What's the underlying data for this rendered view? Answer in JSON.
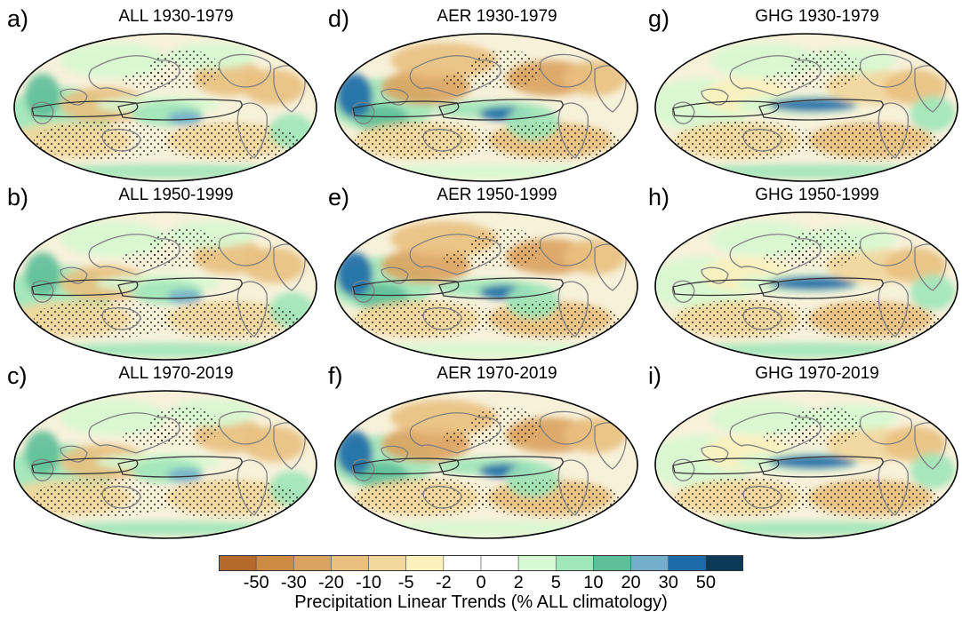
{
  "panels": [
    {
      "letter": "a)",
      "title": "ALL 1930-1979",
      "forcing": "ALL",
      "period": "1930-1979"
    },
    {
      "letter": "b)",
      "title": "ALL 1950-1999",
      "forcing": "ALL",
      "period": "1950-1999"
    },
    {
      "letter": "c)",
      "title": "ALL 1970-2019",
      "forcing": "ALL",
      "period": "1970-2019"
    },
    {
      "letter": "d)",
      "title": "AER 1930-1979",
      "forcing": "AER",
      "period": "1930-1979"
    },
    {
      "letter": "e)",
      "title": "AER 1950-1999",
      "forcing": "AER",
      "period": "1950-1999"
    },
    {
      "letter": "f)",
      "title": "AER 1970-2019",
      "forcing": "AER",
      "period": "1970-2019"
    },
    {
      "letter": "g)",
      "title": "GHG 1930-1979",
      "forcing": "GHG",
      "period": "1930-1979"
    },
    {
      "letter": "h)",
      "title": "GHG 1950-1999",
      "forcing": "GHG",
      "period": "1950-1999"
    },
    {
      "letter": "i)",
      "title": "GHG 1970-2019",
      "forcing": "GHG",
      "period": "1970-2019"
    }
  ],
  "colorbar": {
    "title": "Precipitation Linear Trends (% ALL climatology)",
    "tick_labels": [
      "-50",
      "-30",
      "-20",
      "-10",
      "-5",
      "-2",
      "0",
      "2",
      "5",
      "10",
      "20",
      "30",
      "50"
    ],
    "colors": [
      "#b5692a",
      "#cc8a43",
      "#daa35f",
      "#e9c07f",
      "#f2d79c",
      "#fbf1bd",
      "#ffffff",
      "#ffffff",
      "#d6f8d2",
      "#9fe6b8",
      "#5ebf9a",
      "#74aecb",
      "#1c6aa8",
      "#0a3a58"
    ]
  },
  "palette": {
    "land_outline": "#808080",
    "stipple": "#222222",
    "ocean_base": "#f7f1da"
  },
  "chart_data": [
    {
      "type": "heatmap",
      "title": "ALL 1930-1979",
      "projection": "Robinson, Pacific-centred",
      "stippling": "non-significant trends",
      "units": "% ALL climatology"
    },
    {
      "type": "heatmap",
      "title": "ALL 1950-1999",
      "projection": "Robinson, Pacific-centred",
      "stippling": "non-significant trends",
      "units": "% ALL climatology"
    },
    {
      "type": "heatmap",
      "title": "ALL 1970-2019",
      "projection": "Robinson, Pacific-centred",
      "stippling": "non-significant trends",
      "units": "% ALL climatology"
    },
    {
      "type": "heatmap",
      "title": "AER 1930-1979",
      "projection": "Robinson, Pacific-centred",
      "stippling": "non-significant trends",
      "units": "% ALL climatology"
    },
    {
      "type": "heatmap",
      "title": "AER 1950-1999",
      "projection": "Robinson, Pacific-centred",
      "stippling": "non-significant trends",
      "units": "% ALL climatology"
    },
    {
      "type": "heatmap",
      "title": "AER 1970-2019",
      "projection": "Robinson, Pacific-centred",
      "stippling": "non-significant trends",
      "units": "% ALL climatology"
    },
    {
      "type": "heatmap",
      "title": "GHG 1930-1979",
      "projection": "Robinson, Pacific-centred",
      "stippling": "non-significant trends",
      "units": "% ALL climatology"
    },
    {
      "type": "heatmap",
      "title": "GHG 1950-1999",
      "projection": "Robinson, Pacific-centred",
      "stippling": "non-significant trends",
      "units": "% ALL climatology"
    },
    {
      "type": "heatmap",
      "title": "GHG 1970-2019",
      "projection": "Robinson, Pacific-centred",
      "stippling": "non-significant trends",
      "units": "% ALL climatology"
    }
  ]
}
